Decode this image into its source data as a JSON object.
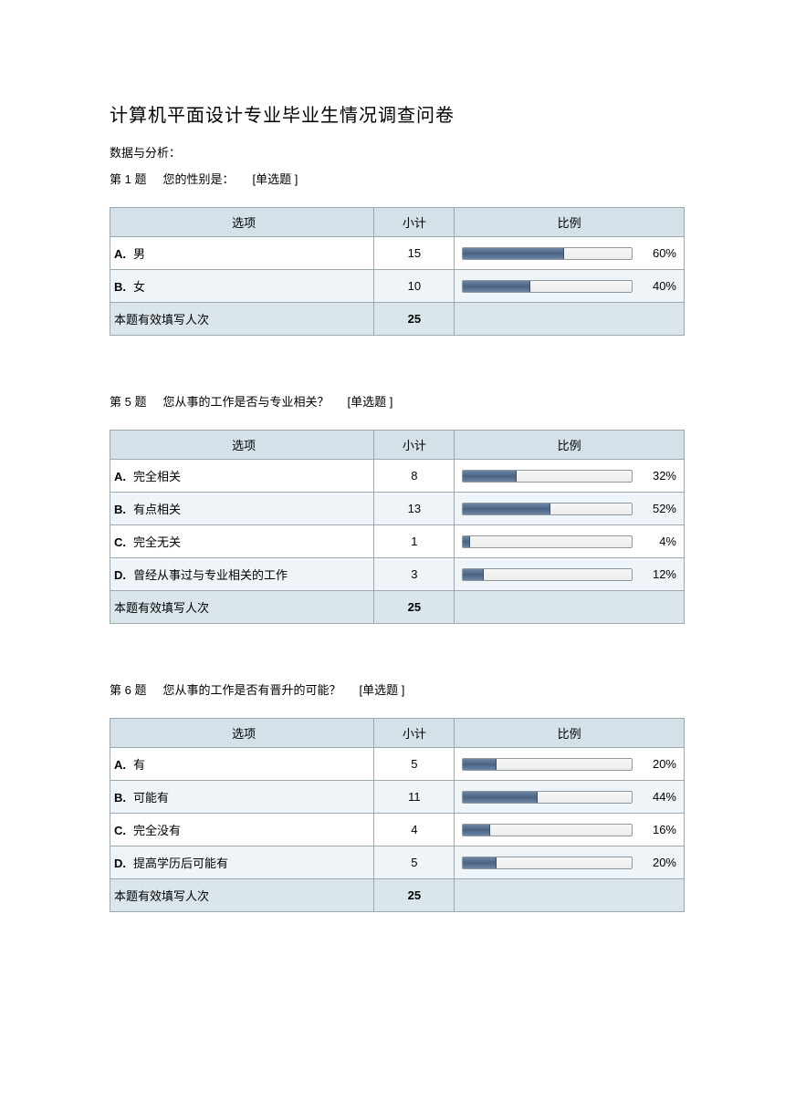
{
  "title": "计算机平面设计专业毕业生情况调查问卷",
  "subtitle": "数据与分析：",
  "columns": {
    "option": "选项",
    "count": "小计",
    "ratio": "比例"
  },
  "footer_label": "本题有效填写人次",
  "bar_style": {
    "track_bg_top": "#f7f7f7",
    "track_bg_bottom": "#ececec",
    "track_border": "#8e9aa3",
    "fill_top": "#6d85a3",
    "fill_mid": "#4a6384",
    "fill_border": "#3a4d66"
  },
  "table_colors": {
    "header_bg": "#d4e1e8",
    "row_bg": "#ffffff",
    "row_alt_bg": "#eef4f8",
    "footer_bg": "#dbe5ec",
    "border": "#9aa9b0"
  },
  "questions": [
    {
      "num": "第 1 题",
      "text": "您的性别是：",
      "type": "[单选题 ]",
      "rows": [
        {
          "letter": "A.",
          "label": "男",
          "count": 15,
          "pct": 60
        },
        {
          "letter": "B.",
          "label": "女",
          "count": 10,
          "pct": 40
        }
      ],
      "total": 25
    },
    {
      "num": "第 5 题",
      "text": "您从事的工作是否与专业相关？",
      "type": "[单选题 ]",
      "rows": [
        {
          "letter": "A.",
          "label": "完全相关",
          "count": 8,
          "pct": 32
        },
        {
          "letter": "B.",
          "label": "有点相关",
          "count": 13,
          "pct": 52
        },
        {
          "letter": "C.",
          "label": "完全无关",
          "count": 1,
          "pct": 4
        },
        {
          "letter": "D.",
          "label": "曾经从事过与专业相关的工作",
          "count": 3,
          "pct": 12
        }
      ],
      "total": 25
    },
    {
      "num": "第 6 题",
      "text": "您从事的工作是否有晋升的可能？",
      "type": "[单选题 ]",
      "rows": [
        {
          "letter": "A.",
          "label": "有",
          "count": 5,
          "pct": 20
        },
        {
          "letter": "B.",
          "label": "可能有",
          "count": 11,
          "pct": 44
        },
        {
          "letter": "C.",
          "label": "完全没有",
          "count": 4,
          "pct": 16
        },
        {
          "letter": "D.",
          "label": "提高学历后可能有",
          "count": 5,
          "pct": 20
        }
      ],
      "total": 25
    }
  ]
}
